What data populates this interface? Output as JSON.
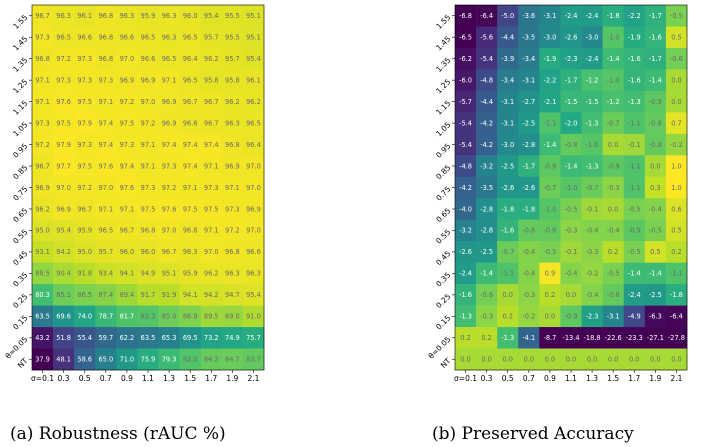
{
  "chart_data": [
    {
      "type": "heatmap",
      "caption": "(a) Robustness (rAUC %)",
      "x_labels": [
        "σ=0.1",
        "0.3",
        "0.5",
        "0.7",
        "0.9",
        "1.1",
        "1.3",
        "1.5",
        "1.7",
        "1.9",
        "2.1"
      ],
      "y_labels": [
        "1.55",
        "1.45",
        "1.35",
        "1.25",
        "1.15",
        "1.05",
        "0.95",
        "0.85",
        "0.75",
        "0.65",
        "0.55",
        "0.45",
        "0.35",
        "0.25",
        "0.15",
        "θ=0.05",
        "NT"
      ],
      "value_range": [
        40,
        98
      ],
      "values": [
        [
          96.7,
          96.3,
          96.1,
          96.8,
          96.3,
          95.9,
          96.3,
          96.0,
          95.4,
          95.5,
          95.1
        ],
        [
          97.3,
          96.5,
          96.6,
          96.8,
          96.6,
          96.5,
          96.3,
          96.5,
          95.7,
          95.5,
          95.1
        ],
        [
          96.8,
          97.2,
          97.3,
          96.8,
          97.0,
          96.6,
          96.5,
          96.4,
          96.2,
          95.7,
          95.4
        ],
        [
          97.1,
          97.3,
          97.3,
          97.3,
          96.9,
          96.9,
          97.1,
          96.5,
          95.8,
          95.8,
          96.1
        ],
        [
          97.1,
          97.6,
          97.5,
          97.1,
          97.2,
          97.0,
          96.9,
          96.7,
          96.7,
          96.2,
          96.2
        ],
        [
          97.3,
          97.5,
          97.9,
          97.4,
          97.5,
          97.2,
          96.9,
          96.6,
          96.7,
          96.3,
          96.5
        ],
        [
          97.2,
          97.9,
          97.3,
          97.4,
          97.3,
          97.1,
          97.4,
          97.4,
          97.4,
          96.8,
          96.4
        ],
        [
          96.7,
          97.7,
          97.5,
          97.6,
          97.4,
          97.1,
          97.3,
          97.4,
          97.1,
          96.9,
          97.0
        ],
        [
          96.9,
          97.0,
          97.2,
          97.0,
          97.6,
          97.3,
          97.2,
          97.1,
          97.3,
          97.1,
          97.0
        ],
        [
          96.2,
          96.9,
          96.7,
          97.1,
          97.1,
          97.5,
          97.6,
          97.5,
          97.5,
          97.3,
          96.9
        ],
        [
          95.0,
          95.4,
          95.9,
          96.5,
          96.7,
          96.8,
          97.0,
          96.8,
          97.1,
          97.2,
          97.0
        ],
        [
          93.1,
          94.2,
          95.0,
          95.7,
          96.0,
          96.0,
          96.7,
          96.3,
          97.0,
          96.8,
          96.6
        ],
        [
          88.5,
          90.4,
          91.8,
          93.4,
          94.1,
          94.9,
          95.1,
          95.9,
          96.2,
          96.3,
          96.3
        ],
        [
          80.3,
          85.1,
          86.5,
          87.4,
          89.4,
          91.7,
          91.9,
          94.1,
          94.2,
          94.7,
          95.4
        ],
        [
          63.5,
          69.6,
          74.0,
          78.7,
          81.7,
          82.3,
          85.0,
          86.9,
          89.5,
          89.0,
          91.0
        ],
        [
          43.2,
          51.8,
          55.4,
          59.7,
          62.2,
          63.5,
          65.3,
          69.5,
          73.2,
          74.9,
          75.7
        ],
        [
          37.9,
          48.1,
          58.6,
          65.0,
          71.0,
          75.9,
          79.3,
          82.0,
          84.2,
          84.7,
          83.7
        ]
      ]
    },
    {
      "type": "heatmap",
      "caption": "(b) Preserved Accuracy",
      "x_labels": [
        "σ=0.1",
        "0.3",
        "0.5",
        "0.7",
        "0.9",
        "1.1",
        "1.3",
        "1.5",
        "1.7",
        "1.9",
        "2.1"
      ],
      "y_labels": [
        "1.55",
        "1.45",
        "1.35",
        "1.25",
        "1.15",
        "1.05",
        "0.95",
        "0.85",
        "0.75",
        "0.65",
        "0.55",
        "0.45",
        "0.35",
        "0.25",
        "0.15",
        "θ=0.05",
        "NT"
      ],
      "value_range": [
        -6.5,
        1.0
      ],
      "values": [
        [
          -6.8,
          -6.4,
          -5.0,
          -3.6,
          -3.1,
          -2.4,
          -2.4,
          -1.8,
          -2.2,
          -1.7,
          -0.5
        ],
        [
          -6.5,
          -5.6,
          -4.4,
          -3.5,
          -3.0,
          -2.6,
          -3.0,
          -1.0,
          -1.9,
          -1.6,
          0.5
        ],
        [
          -6.2,
          -5.4,
          -3.9,
          -3.4,
          -1.9,
          -2.3,
          -2.4,
          -1.4,
          -1.6,
          -1.7,
          -0.6
        ],
        [
          -6.0,
          -4.8,
          -3.4,
          -3.1,
          -2.2,
          -1.7,
          -1.2,
          -1.0,
          -1.6,
          -1.4,
          0.0
        ],
        [
          -5.7,
          -4.4,
          -3.1,
          -2.7,
          -2.1,
          -1.5,
          -1.5,
          -1.2,
          -1.3,
          -0.9,
          0.0
        ],
        [
          -5.4,
          -4.2,
          -3.1,
          -2.5,
          -1.1,
          -2.0,
          -1.3,
          -0.7,
          -1.1,
          -0.8,
          0.7
        ],
        [
          -5.4,
          -4.2,
          -3.0,
          -2.8,
          -1.4,
          -0.8,
          -1.0,
          0.0,
          -0.1,
          -0.8,
          -0.2
        ],
        [
          -4.8,
          -3.2,
          -2.5,
          -1.7,
          -0.9,
          -1.4,
          -1.3,
          -0.9,
          -1.1,
          0.0,
          1.0
        ],
        [
          -4.2,
          -3.5,
          -2.6,
          -2.6,
          -0.7,
          -1.0,
          -0.7,
          -0.3,
          -1.1,
          0.3,
          1.0
        ],
        [
          -4.0,
          -2.8,
          -1.8,
          -1.8,
          -1.0,
          -0.5,
          -0.1,
          -0.0,
          -0.5,
          -0.4,
          0.6
        ],
        [
          -3.2,
          -2.8,
          -1.6,
          -0.8,
          -0.8,
          -0.3,
          -0.4,
          -0.4,
          -0.9,
          -0.5,
          0.5
        ],
        [
          -2.6,
          -2.5,
          -0.7,
          -0.4,
          -0.5,
          -0.1,
          -0.3,
          0.2,
          -0.5,
          0.5,
          0.2
        ],
        [
          -2.4,
          -1.4,
          -1.1,
          -0.4,
          0.9,
          -0.4,
          -0.2,
          -0.5,
          -1.4,
          -1.4,
          -1.1
        ],
        [
          -1.6,
          -0.6,
          -0.0,
          -0.3,
          0.2,
          -0.0,
          -0.4,
          -0.8,
          -2.4,
          -2.5,
          -1.8
        ],
        [
          -1.3,
          -0.3,
          0.2,
          -0.2,
          0.0,
          -0.9,
          -2.3,
          -3.1,
          -4.9,
          -6.3,
          -6.4
        ],
        [
          0.2,
          0.2,
          -1.3,
          -4.1,
          -8.7,
          -13.4,
          -18.8,
          -22.6,
          -23.3,
          -27.1,
          -27.8
        ],
        [
          0.0,
          0.0,
          0.0,
          0.0,
          0.0,
          0.0,
          0.0,
          0.0,
          0.0,
          0.0,
          0.0
        ]
      ]
    }
  ]
}
